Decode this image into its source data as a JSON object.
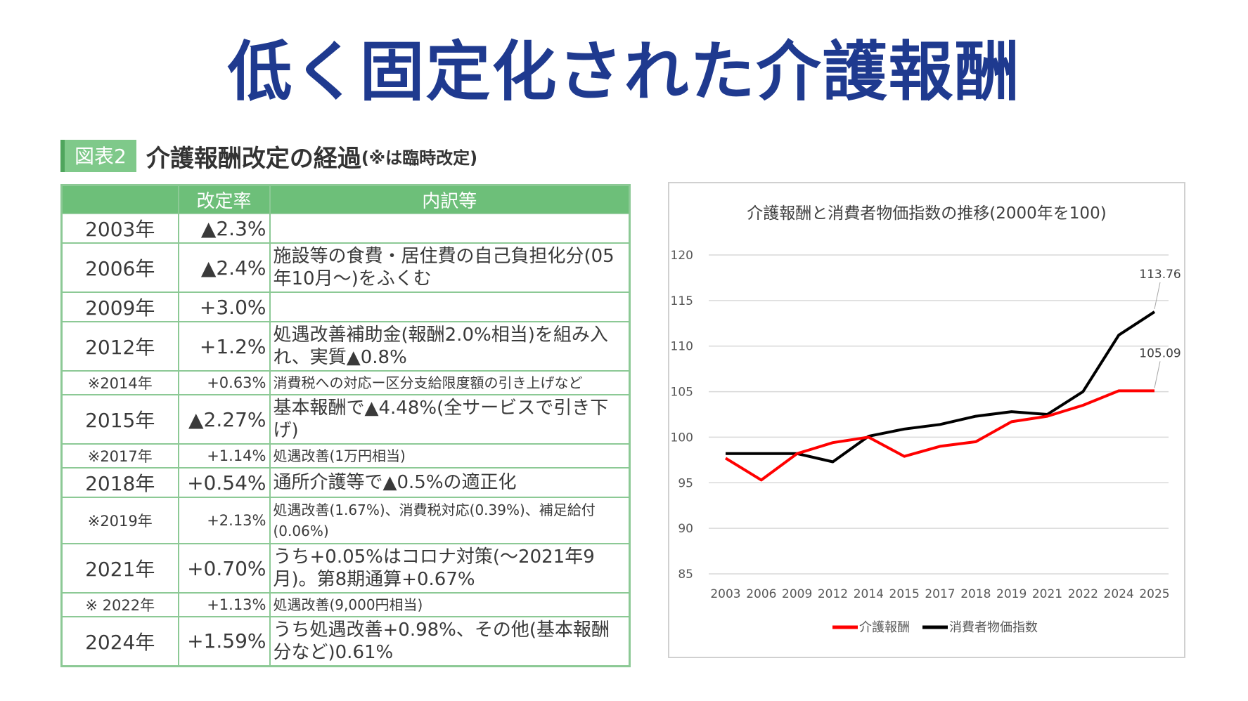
{
  "slide": {
    "title": "低く固定化された介護報酬"
  },
  "table_figure": {
    "tag": "図表2",
    "title": "介護報酬改定の経過",
    "note": "(※は臨時改定)",
    "headers": [
      "",
      "改定率",
      "内訳等"
    ],
    "rows": [
      {
        "year": "2003年",
        "rate": "▲2.3%",
        "detail": "",
        "temp": false
      },
      {
        "year": "2006年",
        "rate": "▲2.4%",
        "detail": "施設等の食費・居住費の自己負担化分(05年10月〜)をふくむ",
        "temp": false
      },
      {
        "year": "2009年",
        "rate": "+3.0%",
        "detail": "",
        "temp": false
      },
      {
        "year": "2012年",
        "rate": "+1.2%",
        "detail": "処遇改善補助金(報酬2.0%相当)を組み入れ、実質▲0.8%",
        "temp": false
      },
      {
        "year": "※2014年",
        "rate": "+0.63%",
        "detail": "消費税への対応ー区分支給限度額の引き上げなど",
        "temp": true
      },
      {
        "year": "2015年",
        "rate": "▲2.27%",
        "detail": "基本報酬で▲4.48%(全サービスで引き下げ)",
        "temp": false
      },
      {
        "year": "※2017年",
        "rate": "+1.14%",
        "detail": "処遇改善(1万円相当)",
        "temp": true
      },
      {
        "year": "2018年",
        "rate": "+0.54%",
        "detail": "通所介護等で▲0.5%の適正化",
        "temp": false
      },
      {
        "year": "※2019年",
        "rate": "+2.13%",
        "detail": "処遇改善(1.67%)、消費税対応(0.39%)、補足給付(0.06%)",
        "temp": true
      },
      {
        "year": "2021年",
        "rate": "+0.70%",
        "detail": "うち+0.05%はコロナ対策(〜2021年9月)。第8期通算+0.67%",
        "temp": false
      },
      {
        "year": "※ 2022年",
        "rate": "+1.13%",
        "detail": "処遇改善(9,000円相当)",
        "temp": true
      },
      {
        "year": "2024年",
        "rate": "+1.59%",
        "detail": "うち処遇改善+0.98%、その他(基本報酬分など)0.61%",
        "temp": false
      }
    ]
  },
  "chart_data": {
    "type": "line",
    "title": "介護報酬と消費者物価指数の推移(2000年を100)",
    "categories": [
      "2003",
      "2006",
      "2009",
      "2012",
      "2014",
      "2015",
      "2017",
      "2018",
      "2019",
      "2021",
      "2022",
      "2024",
      "2025"
    ],
    "series": [
      {
        "name": "介護報酬",
        "color": "#ff0000",
        "values": [
          97.7,
          95.3,
          98.2,
          99.4,
          100.0,
          97.9,
          99.0,
          99.5,
          101.7,
          102.3,
          103.5,
          105.09,
          105.09
        ]
      },
      {
        "name": "消費者物価指数",
        "color": "#000000",
        "values": [
          98.2,
          98.2,
          98.2,
          97.3,
          100.1,
          100.9,
          101.4,
          102.3,
          102.8,
          102.5,
          105.0,
          111.2,
          113.76
        ]
      }
    ],
    "end_labels": [
      "105.09",
      "113.76"
    ],
    "ylim": [
      85,
      120
    ],
    "yticks": [
      85,
      90,
      95,
      100,
      105,
      110,
      115,
      120
    ],
    "grid": true,
    "legend": "bottom"
  }
}
